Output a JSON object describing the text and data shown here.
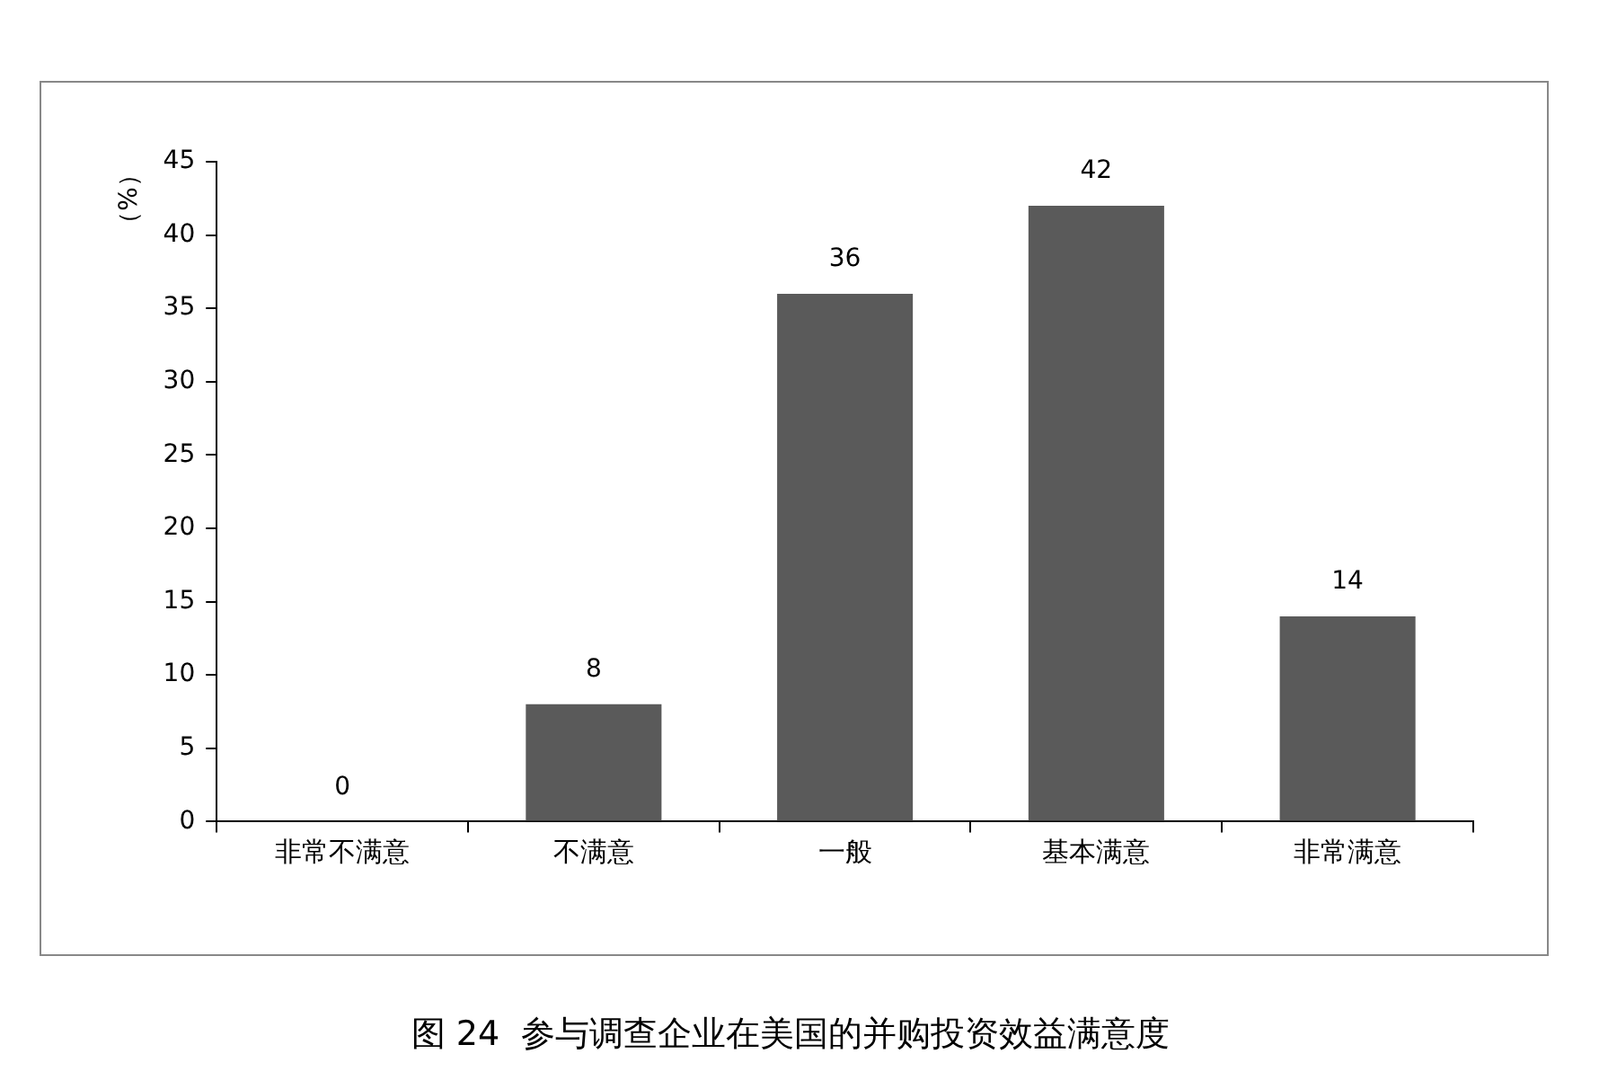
{
  "chart_data": {
    "type": "bar",
    "title": "图 24  参与调查企业在美国的并购投资效益满意度",
    "ylabel": "（%）",
    "categories": [
      "非常不满意",
      "不满意",
      "一般",
      "基本满意",
      "非常满意"
    ],
    "values": [
      0,
      8,
      36,
      42,
      14
    ],
    "color": "#5a5a5a",
    "ylim": [
      0,
      45
    ],
    "yticks": [
      0,
      5,
      10,
      15,
      20,
      25,
      30,
      35,
      40,
      45
    ],
    "grid": false,
    "legend": false,
    "data_labels": true
  }
}
